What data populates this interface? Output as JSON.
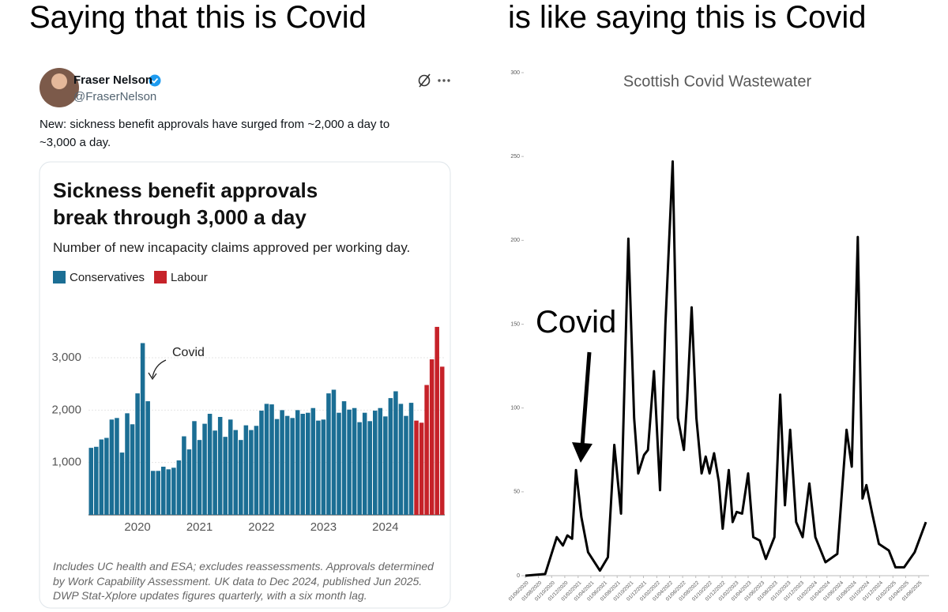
{
  "captions": [
    "Saying that this is Covid",
    "is like saying this is Covid"
  ],
  "tweet": {
    "name": "Fraser Nelson",
    "handle": "@FraserNelson",
    "text": "New: sickness benefit approvals have surged from ~2,000 a day to ~3,000 a day."
  },
  "chart_data": [
    {
      "type": "bar",
      "title": "Sickness benefit approvals break through 3,000 a day",
      "subtitle": "Number of new incapacity claims approved per working day.",
      "categories": [
        null,
        null,
        null,
        null,
        null,
        null,
        null,
        null,
        null,
        "2020",
        null,
        null,
        null,
        null,
        null,
        null,
        null,
        null,
        null,
        null,
        null,
        "2021",
        null,
        null,
        null,
        null,
        null,
        null,
        null,
        null,
        null,
        null,
        null,
        "2022",
        null,
        null,
        null,
        null,
        null,
        null,
        null,
        null,
        null,
        null,
        null,
        "2023",
        null,
        null,
        null,
        null,
        null,
        null,
        null,
        null,
        null,
        null,
        null,
        "2024",
        null,
        null,
        null,
        null,
        null,
        null,
        null,
        null,
        null,
        null,
        null
      ],
      "series": [
        {
          "name": "Conservatives",
          "color": "#1b6e94",
          "values": [
            1280,
            1300,
            1440,
            1470,
            1820,
            1850,
            1190,
            1940,
            1730,
            2320,
            3280,
            2170,
            840,
            840,
            920,
            870,
            900,
            1040,
            1500,
            1250,
            1790,
            1430,
            1740,
            1930,
            1610,
            1870,
            1490,
            1820,
            1620,
            1430,
            1710,
            1620,
            1700,
            1990,
            2120,
            2110,
            1830,
            2000,
            1890,
            1850,
            2000,
            1930,
            1950,
            2040,
            1800,
            1820,
            2320,
            2390,
            1950,
            2170,
            2010,
            2040,
            1770,
            1950,
            1790,
            1990,
            2040,
            1880,
            2230,
            2360,
            2120,
            1890,
            2140,
            null,
            null,
            null,
            null,
            null,
            null
          ]
        },
        {
          "name": "Labour",
          "color": "#c62229",
          "values": [
            null,
            null,
            null,
            null,
            null,
            null,
            null,
            null,
            null,
            null,
            null,
            null,
            null,
            null,
            null,
            null,
            null,
            null,
            null,
            null,
            null,
            null,
            null,
            null,
            null,
            null,
            null,
            null,
            null,
            null,
            null,
            null,
            null,
            null,
            null,
            null,
            null,
            null,
            null,
            null,
            null,
            null,
            null,
            null,
            null,
            null,
            null,
            null,
            null,
            null,
            null,
            null,
            null,
            null,
            null,
            null,
            null,
            null,
            null,
            null,
            null,
            null,
            null,
            1800,
            1760,
            2480,
            2970,
            3590,
            2830
          ]
        }
      ],
      "ylim": [
        0,
        3800
      ],
      "yticks": [
        {
          "value": 1000,
          "label": "1,000"
        },
        {
          "value": 2000,
          "label": "2,000"
        },
        {
          "value": 3000,
          "label": "3,000"
        }
      ],
      "annotation": "Covid",
      "note": "Includes UC health and ESA; excludes reassessments. Approvals determined by Work Capability Assessment. UK data to Dec 2024, published Jun 2025. DWP Stat-Xplore updates figures quarterly, with a six month lag."
    },
    {
      "type": "line",
      "title": "Scottish Covid Wastewater",
      "color": "#000000",
      "x": [
        "01/06/2020",
        "01/09/2020",
        "25/10/2020",
        "22/11/2020",
        "13/12/2020",
        "04/01/2021",
        "22/01/2021",
        "16/02/2021",
        "19/03/2021",
        "13/05/2021",
        "19/06/2021",
        "19/07/2021",
        "19/08/2021",
        "22/09/2021",
        "19/10/2021",
        "07/11/2021",
        "04/12/2021",
        "22/12/2021",
        "19/01/2022",
        "16/02/2022",
        "13/03/2022",
        "16/04/2022",
        "10/05/2022",
        "07/06/2022",
        "22/06/2022",
        "13/07/2022",
        "04/08/2022",
        "28/08/2022",
        "16/09/2022",
        "04/10/2022",
        "25/10/2022",
        "16/11/2022",
        "04/12/2022",
        "01/01/2023",
        "19/01/2023",
        "07/02/2023",
        "04/03/2023",
        "01/04/2023",
        "25/04/2023",
        "25/05/2023",
        "22/06/2023",
        "01/08/2023",
        "28/08/2023",
        "19/09/2023",
        "13/10/2023",
        "10/11/2023",
        "10/12/2023",
        "10/01/2024",
        "07/02/2024",
        "25/03/2024",
        "19/05/2024",
        "01/07/2024",
        "25/07/2024",
        "22/08/2024",
        "13/09/2024",
        "01/10/2024",
        "28/10/2024",
        "28/11/2024",
        "13/01/2025",
        "13/02/2025",
        "25/03/2025",
        "13/05/2025",
        "04/07/2025"
      ],
      "values": [
        0,
        1,
        23,
        18,
        24,
        22,
        63,
        35,
        14,
        3,
        11,
        78,
        37,
        201,
        94,
        61,
        72,
        75,
        122,
        51,
        150,
        247,
        94,
        75,
        105,
        160,
        94,
        61,
        71,
        61,
        73,
        56,
        28,
        63,
        32,
        38,
        37,
        61,
        23,
        21,
        10,
        23,
        108,
        42,
        87,
        32,
        23,
        55,
        23,
        8,
        13,
        87,
        65,
        202,
        46,
        54,
        37,
        19,
        15,
        5,
        5,
        14,
        32
      ],
      "xlim": [
        "01/06/2020",
        "04/07/2025"
      ],
      "xticks": [
        "01/06/2020",
        "01/08/2020",
        "01/10/2020",
        "01/12/2020",
        "01/02/2021",
        "01/04/2021",
        "01/06/2021",
        "01/08/2021",
        "01/10/2021",
        "01/12/2021",
        "01/02/2022",
        "01/04/2022",
        "01/06/2022",
        "01/08/2022",
        "01/10/2022",
        "01/12/2022",
        "01/02/2023",
        "01/04/2023",
        "01/06/2023",
        "01/08/2023",
        "01/10/2023",
        "01/12/2023",
        "01/02/2024",
        "01/04/2024",
        "01/06/2024",
        "01/08/2024",
        "01/10/2024",
        "01/12/2024",
        "01/02/2025",
        "01/04/2025",
        "01/06/2025"
      ],
      "ylim": [
        0,
        300
      ],
      "yticks": [
        0,
        50,
        100,
        150,
        200,
        250,
        300
      ],
      "annotation": "Covid"
    }
  ]
}
